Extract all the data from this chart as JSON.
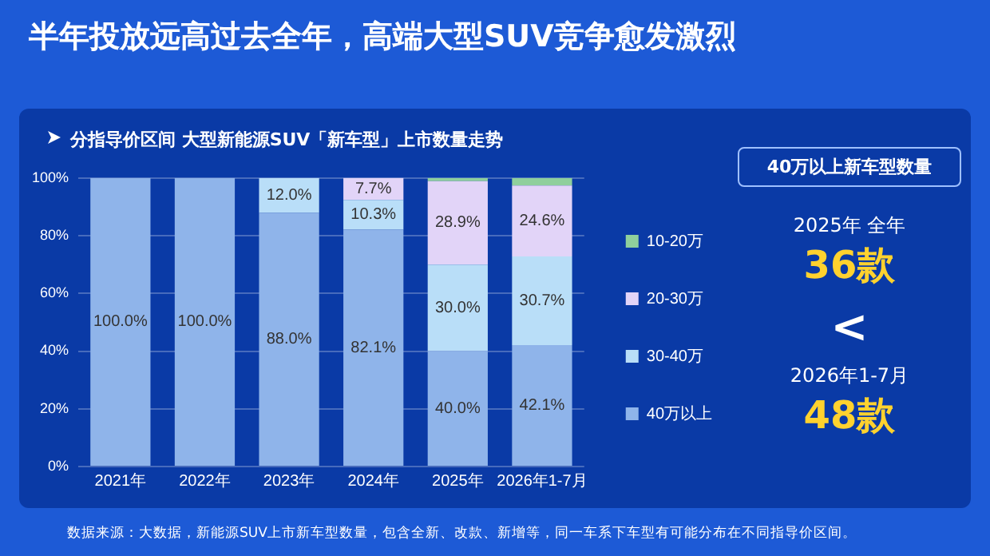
{
  "chart_data": {
    "type": "bar",
    "title": "半年投放远高过去全年，高端大型SUV竞争愈发激烈",
    "subtitle": "分指导价区间 大型新能源SUV「新车型」上市数量走势",
    "categories": [
      "2021年",
      "2022年",
      "2023年",
      "2024年",
      "2025年",
      "2026年1-7月"
    ],
    "stacked": true,
    "ylim": [
      0,
      100
    ],
    "yticks": [
      {
        "value": 0,
        "label": "0%"
      },
      {
        "value": 20,
        "label": "20%"
      },
      {
        "value": 40,
        "label": "40%"
      },
      {
        "value": 60,
        "label": "60%"
      },
      {
        "value": 80,
        "label": "80%"
      },
      {
        "value": 100,
        "label": "100%"
      }
    ],
    "grid": "y",
    "legend": "right",
    "series": [
      {
        "name": "40万以上",
        "color": "#8fb4ea",
        "values": [
          100,
          100,
          88,
          82.1,
          40,
          42.1
        ],
        "value_labels": [
          "100.0%",
          "100.0%",
          "88.0%",
          "82.1%",
          "40.0%",
          "42.1%"
        ]
      },
      {
        "name": "30-40万",
        "color": "#b9def8",
        "values": [
          0,
          0,
          12,
          10.3,
          30,
          30.7
        ],
        "value_labels": [
          null,
          null,
          "12.0%",
          "10.3%",
          "30.0%",
          "30.7%"
        ]
      },
      {
        "name": "20-30万",
        "color": "#e2d4f8",
        "values": [
          0,
          0,
          0,
          7.7,
          28.9,
          24.6
        ],
        "value_labels": [
          null,
          null,
          null,
          "7.7%",
          "28.9%",
          "24.6%"
        ]
      },
      {
        "name": "10-20万",
        "color": "#8fcf9c",
        "values": [
          0,
          0,
          0,
          0,
          1.1,
          2.6
        ],
        "value_labels": [
          null,
          null,
          null,
          null,
          null,
          null
        ]
      }
    ],
    "annotations": [
      "40万以上新车型数量",
      "2025年 全年",
      "36款",
      "<",
      "2026年1-7月",
      "48款",
      "数据来源：大数据，新能源SUV上市新车型数量，包含全新、改款、新增等，同一车系下车型有可能分布在不同指导价区间。"
    ]
  }
}
